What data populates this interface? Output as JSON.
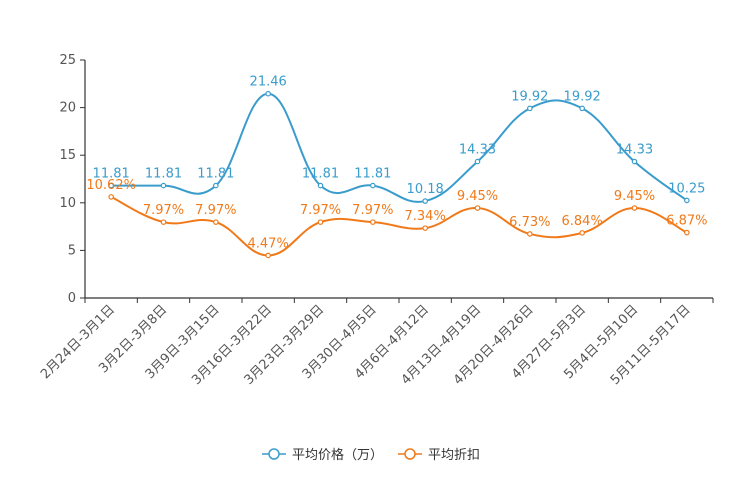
{
  "chart_data": {
    "type": "line",
    "title": "",
    "xlabel": "",
    "ylabel": "",
    "ylim": [
      0,
      25
    ],
    "yticks": [
      0,
      5,
      10,
      15,
      20,
      25
    ],
    "categories": [
      "2月24日-3月1日",
      "3月2日-3月8日",
      "3月9日-3月15日",
      "3月16日-3月22日",
      "3月23日-3月29日",
      "3月30日-4月5日",
      "4月6日-4月12日",
      "4月13日-4月19日",
      "4月20日-4月26日",
      "4月27日-5月3日",
      "5月4日-5月10日",
      "5月11日-5月17日"
    ],
    "series": [
      {
        "name": "平均价格（万）",
        "color": "#3a9ccc",
        "values": [
          11.81,
          11.81,
          11.81,
          21.46,
          11.81,
          11.81,
          10.18,
          14.33,
          19.92,
          19.92,
          14.33,
          10.25
        ],
        "labels": [
          "11.81",
          "11.81",
          "11.81",
          "21.46",
          "11.81",
          "11.81",
          "10.18",
          "14.33",
          "19.92",
          "19.92",
          "14.33",
          "10.25"
        ]
      },
      {
        "name": "平均折扣",
        "color": "#f07a1a",
        "values": [
          10.62,
          7.97,
          7.97,
          4.47,
          7.97,
          7.97,
          7.34,
          9.45,
          6.73,
          6.84,
          9.45,
          6.87
        ],
        "labels": [
          "10.62%",
          "7.97%",
          "7.97%",
          "4.47%",
          "7.97%",
          "7.97%",
          "7.34%",
          "9.45%",
          "6.73%",
          "6.84%",
          "9.45%",
          "6.87%"
        ]
      }
    ],
    "legend_position": "bottom-center",
    "grid": false
  }
}
